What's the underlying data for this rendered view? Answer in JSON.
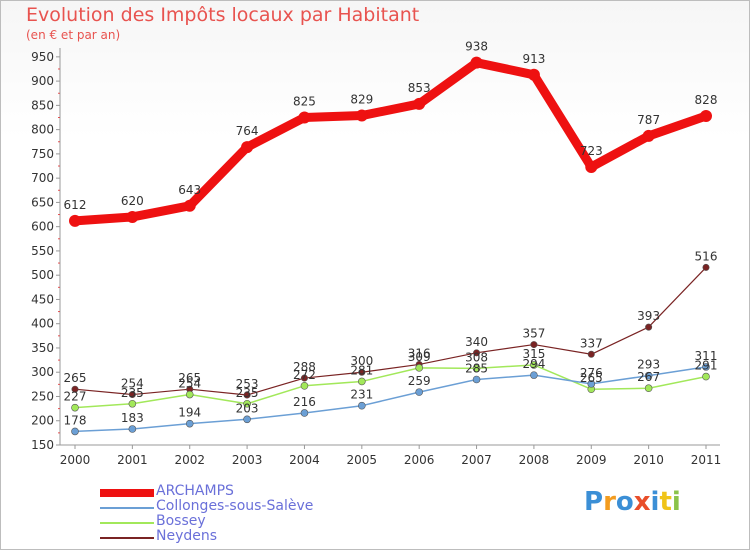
{
  "header": {
    "title": "Evolution des Impôts locaux par Habitant",
    "subtitle": "(en € et par an)"
  },
  "logo": {
    "text": "Proxiti"
  },
  "chart_data": {
    "type": "line",
    "x": [
      "2000",
      "2001",
      "2002",
      "2003",
      "2004",
      "2005",
      "2006",
      "2007",
      "2008",
      "2009",
      "2010",
      "2011"
    ],
    "yticks": [
      150,
      200,
      250,
      300,
      350,
      400,
      450,
      500,
      550,
      600,
      650,
      700,
      750,
      800,
      850,
      900,
      950
    ],
    "ylim": [
      150,
      960
    ],
    "grid": false,
    "legend_position": "bottom-left",
    "series": [
      {
        "name": "ARCHAMPS",
        "color": "#ee1111",
        "width": 9,
        "marker": 6,
        "values": [
          612,
          620,
          643,
          764,
          825,
          829,
          853,
          938,
          913,
          723,
          787,
          828
        ]
      },
      {
        "name": "Collonges-sous-Salève",
        "color": "#6b9fd5",
        "width": 1.5,
        "marker": 3.5,
        "values": [
          178,
          183,
          194,
          203,
          216,
          231,
          259,
          285,
          294,
          276,
          293,
          311
        ]
      },
      {
        "name": "Bossey",
        "color": "#a2e85a",
        "width": 1.5,
        "marker": 3.5,
        "values": [
          227,
          235,
          254,
          235,
          272,
          281,
          309,
          308,
          315,
          265,
          267,
          291
        ]
      },
      {
        "name": "Neydens",
        "color": "#7a2424",
        "width": 1.2,
        "marker": 3.2,
        "values": [
          265,
          254,
          265,
          253,
          288,
          300,
          316,
          340,
          357,
          337,
          393,
          516
        ]
      }
    ]
  }
}
